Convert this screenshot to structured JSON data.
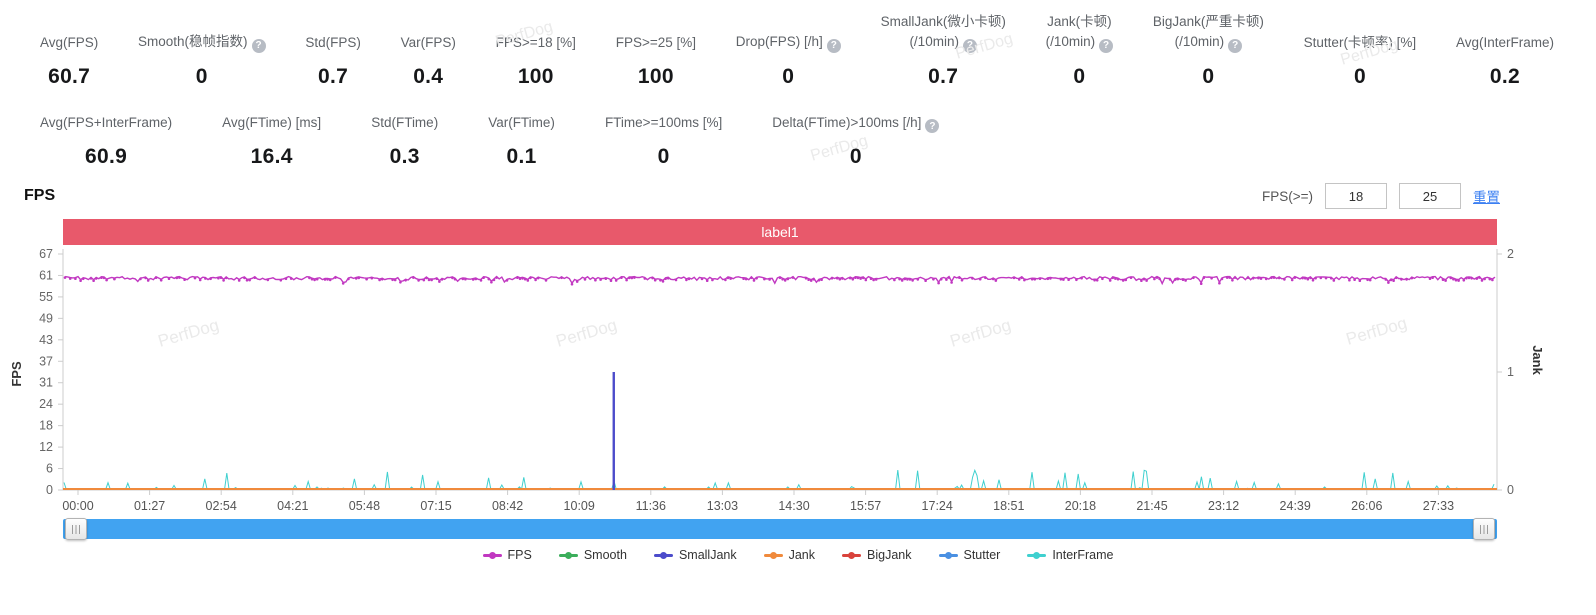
{
  "watermark_text": "PerfDog",
  "colors": {
    "banner": "#e8596b",
    "scrollbar": "#41a3f1",
    "axis_line": "#cccccc",
    "tick_text": "#666666",
    "label_text": "#5f6368",
    "value_text": "#17181a",
    "link": "#3b7ff2",
    "help_icon": "#b7bcc4",
    "watermark": "#eaeaea"
  },
  "stats": {
    "row1": [
      {
        "lines": [
          "Avg(FPS)"
        ],
        "help": false,
        "value": "60.7"
      },
      {
        "lines": [
          "Smooth(稳帧指数)"
        ],
        "help": true,
        "value": "0"
      },
      {
        "lines": [
          "Std(FPS)"
        ],
        "help": false,
        "value": "0.7"
      },
      {
        "lines": [
          "Var(FPS)"
        ],
        "help": false,
        "value": "0.4"
      },
      {
        "lines": [
          "FPS>=18 [%]"
        ],
        "help": false,
        "value": "100"
      },
      {
        "lines": [
          "FPS>=25 [%]"
        ],
        "help": false,
        "value": "100"
      },
      {
        "lines": [
          "Drop(FPS) [/h]"
        ],
        "help": true,
        "value": "0"
      },
      {
        "lines": [
          "SmallJank(微小卡顿)",
          "(/10min)"
        ],
        "help": true,
        "value": "0.7"
      },
      {
        "lines": [
          "Jank(卡顿)",
          "(/10min)"
        ],
        "help": true,
        "value": "0"
      },
      {
        "lines": [
          "BigJank(严重卡顿)",
          "(/10min)"
        ],
        "help": true,
        "value": "0"
      },
      {
        "lines": [
          "Stutter(卡顿率) [%]"
        ],
        "help": false,
        "value": "0"
      },
      {
        "lines": [
          "Avg(InterFrame)"
        ],
        "help": false,
        "value": "0.2"
      }
    ],
    "row2": [
      {
        "lines": [
          "Avg(FPS+InterFrame)"
        ],
        "help": false,
        "value": "60.9"
      },
      {
        "lines": [
          "Avg(FTime) [ms]"
        ],
        "help": false,
        "value": "16.4"
      },
      {
        "lines": [
          "Std(FTime)"
        ],
        "help": false,
        "value": "0.3"
      },
      {
        "lines": [
          "Var(FTime)"
        ],
        "help": false,
        "value": "0.1"
      },
      {
        "lines": [
          "FTime>=100ms [%]"
        ],
        "help": false,
        "value": "0"
      },
      {
        "lines": [
          "Delta(FTime)>100ms [/h]"
        ],
        "help": true,
        "value": "0"
      }
    ]
  },
  "section": {
    "title": "FPS",
    "threshold_label": "FPS(>=)",
    "threshold_low": "18",
    "threshold_high": "25",
    "reset_label": "重置"
  },
  "chart_data": {
    "type": "line",
    "title": "label1",
    "grid": false,
    "legend_position": "bottom",
    "left_axis": {
      "label": "FPS",
      "range": [
        0,
        67
      ],
      "ticks": [
        0,
        6,
        12,
        18,
        24,
        31,
        37,
        43,
        49,
        55,
        61,
        67
      ]
    },
    "right_axis": {
      "label": "Jank",
      "range": [
        0,
        2
      ],
      "ticks": [
        0,
        1,
        2
      ]
    },
    "x_ticks": [
      "00:00",
      "01:27",
      "02:54",
      "04:21",
      "05:48",
      "07:15",
      "08:42",
      "10:09",
      "11:36",
      "13:03",
      "14:30",
      "15:57",
      "17:24",
      "18:51",
      "20:18",
      "21:45",
      "23:12",
      "24:39",
      "26:06",
      "27:33"
    ],
    "x_tick_interval_seconds": 87,
    "series": [
      {
        "name": "FPS",
        "color": "#c138c1",
        "axis": "left",
        "pattern": "steady",
        "base": 61,
        "dip_min": 58,
        "description": "constant ~61 fps with small intermittent dips to ~58-59"
      },
      {
        "name": "Smooth",
        "color": "#3cae5b",
        "axis": "left",
        "pattern": "flat",
        "base": 0
      },
      {
        "name": "SmallJank",
        "color": "#4c4ccb",
        "axis": "right",
        "pattern": "spike",
        "base": 0,
        "spikes": [
          {
            "time": "10:51",
            "value": 1
          }
        ]
      },
      {
        "name": "Jank",
        "color": "#f08a3c",
        "axis": "right",
        "pattern": "flat",
        "base": 0
      },
      {
        "name": "BigJank",
        "color": "#d9433c",
        "axis": "right",
        "pattern": "flat",
        "base": 0
      },
      {
        "name": "Stutter",
        "color": "#4a90e2",
        "axis": "right",
        "pattern": "flat",
        "base": 0
      },
      {
        "name": "InterFrame",
        "color": "#3fd0cf",
        "axis": "left",
        "pattern": "noise",
        "base": 0,
        "max": 5.5,
        "description": "near-zero with frequent small spikes up to ~5"
      }
    ]
  }
}
